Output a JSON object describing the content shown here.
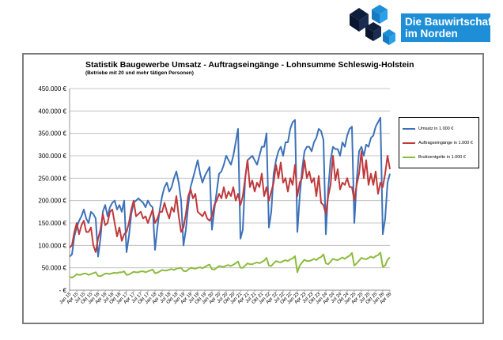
{
  "logo": {
    "line1": "Die Bauwirtschaft",
    "line2": "im Norden",
    "mark": "cube-cluster-icon"
  },
  "chart_data": {
    "type": "line",
    "title": "Statistik Baugewerbe Umsatz - Auftragseingänge - Lohnsumme Schleswig-Holstein",
    "subtitle": "(Betriebe mit 20 und mehr tätigen Personen)",
    "xlabel": "",
    "ylabel": "",
    "ylim": [
      0,
      450000
    ],
    "yticks": [
      0,
      50000,
      100000,
      150000,
      200000,
      250000,
      300000,
      350000,
      400000,
      450000
    ],
    "ytick_labels": [
      "- €",
      "50.000 €",
      "100.000 €",
      "150.000 €",
      "200.000 €",
      "250.000 €",
      "300.000 €",
      "350.000 €",
      "400.000 €",
      "450.000 €"
    ],
    "x_start": "2015-01",
    "x_end": "2026-04",
    "x_tick_labels": [
      "Jan 15",
      "Apr 15",
      "Jul 15",
      "Okt 15",
      "Jan 16",
      "Apr 16",
      "Jul 16",
      "Okt 16",
      "Jan 17",
      "Apr 17",
      "Jul 17",
      "Okt 17",
      "Jan 18",
      "Apr 18",
      "Jul 18",
      "Okt 18",
      "Jan 19",
      "Apr 19",
      "Jul 19",
      "Okt 19",
      "Jan 20",
      "Apr 20",
      "Jul 20",
      "Okt 20",
      "Jan 21",
      "Apr 21",
      "Jul 21",
      "Okt 21",
      "Jan 22",
      "Apr 22",
      "Jul 22",
      "Okt 22",
      "Jan 23",
      "Apr 23",
      "Jul 23",
      "Okt 23",
      "Jan 24",
      "Apr 24",
      "Jul 24",
      "Okt 24",
      "Jan 25",
      "Apr 25",
      "Jul 25",
      "Okt 25",
      "Jan 26",
      "Apr 26"
    ],
    "grid": true,
    "legend_position": "right",
    "series": [
      {
        "name": "Umsatz in 1.000 €",
        "color": "#3d72b9",
        "values": [
          75000,
          80000,
          120000,
          140000,
          155000,
          165000,
          180000,
          160000,
          150000,
          175000,
          170000,
          160000,
          75000,
          115000,
          175000,
          190000,
          165000,
          185000,
          195000,
          200000,
          180000,
          190000,
          175000,
          200000,
          85000,
          120000,
          170000,
          195000,
          200000,
          205000,
          200000,
          195000,
          185000,
          200000,
          190000,
          185000,
          90000,
          140000,
          180000,
          210000,
          230000,
          240000,
          220000,
          230000,
          250000,
          265000,
          240000,
          200000,
          100000,
          135000,
          190000,
          230000,
          250000,
          270000,
          290000,
          260000,
          240000,
          255000,
          265000,
          275000,
          135000,
          180000,
          220000,
          260000,
          265000,
          280000,
          300000,
          290000,
          280000,
          300000,
          330000,
          360000,
          115000,
          135000,
          250000,
          290000,
          295000,
          300000,
          290000,
          280000,
          300000,
          320000,
          320000,
          350000,
          140000,
          175000,
          260000,
          290000,
          310000,
          320000,
          300000,
          330000,
          330000,
          360000,
          375000,
          380000,
          130000,
          210000,
          270000,
          310000,
          320000,
          320000,
          310000,
          330000,
          340000,
          360000,
          355000,
          335000,
          125000,
          225000,
          290000,
          320000,
          315000,
          315000,
          300000,
          330000,
          320000,
          345000,
          360000,
          365000,
          150000,
          245000,
          310000,
          320000,
          300000,
          325000,
          320000,
          340000,
          345000,
          365000,
          375000,
          385000,
          125000,
          160000,
          240000,
          260000
        ]
      },
      {
        "name": "Auftragseingänge in 1.000 €",
        "color": "#c0393b",
        "values": [
          95000,
          100000,
          130000,
          150000,
          125000,
          145000,
          155000,
          130000,
          130000,
          140000,
          100000,
          85000,
          115000,
          135000,
          170000,
          145000,
          150000,
          175000,
          180000,
          150000,
          120000,
          140000,
          110000,
          125000,
          130000,
          150000,
          180000,
          200000,
          165000,
          170000,
          175000,
          160000,
          165000,
          150000,
          165000,
          180000,
          150000,
          160000,
          175000,
          175000,
          195000,
          175000,
          160000,
          185000,
          175000,
          210000,
          165000,
          130000,
          140000,
          170000,
          210000,
          225000,
          205000,
          215000,
          175000,
          170000,
          165000,
          175000,
          160000,
          155000,
          165000,
          190000,
          200000,
          215000,
          205000,
          230000,
          205000,
          220000,
          210000,
          230000,
          200000,
          215000,
          190000,
          210000,
          250000,
          290000,
          230000,
          245000,
          220000,
          240000,
          230000,
          260000,
          210000,
          230000,
          200000,
          220000,
          240000,
          280000,
          250000,
          285000,
          240000,
          250000,
          220000,
          250000,
          235000,
          280000,
          210000,
          240000,
          250000,
          290000,
          250000,
          265000,
          240000,
          250000,
          210000,
          255000,
          195000,
          190000,
          170000,
          210000,
          235000,
          300000,
          245000,
          270000,
          225000,
          240000,
          235000,
          250000,
          230000,
          230000,
          200000,
          235000,
          260000,
          310000,
          250000,
          290000,
          235000,
          260000,
          235000,
          265000,
          215000,
          240000,
          230000,
          260000,
          300000,
          270000
        ]
      },
      {
        "name": "Bruttoentgelte in 1.000 €",
        "color": "#8dbb3d",
        "values": [
          30000,
          28000,
          31000,
          36000,
          34000,
          35000,
          37000,
          37000,
          34000,
          36000,
          38000,
          40000,
          32000,
          31000,
          34000,
          37000,
          37000,
          36000,
          38000,
          39000,
          38000,
          40000,
          40000,
          42000,
          34000,
          35000,
          38000,
          41000,
          40000,
          40000,
          42000,
          42000,
          40000,
          42000,
          44000,
          46000,
          38000,
          39000,
          42000,
          45000,
          44000,
          44000,
          46000,
          47000,
          45000,
          48000,
          49000,
          50000,
          43000,
          42000,
          46000,
          50000,
          49000,
          48000,
          50000,
          51000,
          49000,
          52000,
          55000,
          57000,
          47000,
          46000,
          50000,
          54000,
          53000,
          52000,
          55000,
          56000,
          54000,
          57000,
          60000,
          64000,
          50000,
          50000,
          55000,
          60000,
          58000,
          58000,
          60000,
          62000,
          60000,
          63000,
          66000,
          72000,
          55000,
          54000,
          60000,
          65000,
          63000,
          62000,
          65000,
          67000,
          65000,
          69000,
          71000,
          76000,
          40000,
          55000,
          62000,
          68000,
          65000,
          65000,
          67000,
          70000,
          67000,
          72000,
          74000,
          80000,
          60000,
          58000,
          64000,
          70000,
          68000,
          67000,
          70000,
          73000,
          70000,
          74000,
          77000,
          83000,
          55000,
          60000,
          66000,
          72000,
          70000,
          69000,
          72000,
          75000,
          72000,
          76000,
          78000,
          84000,
          52000,
          55000,
          68000,
          73000
        ]
      }
    ]
  }
}
